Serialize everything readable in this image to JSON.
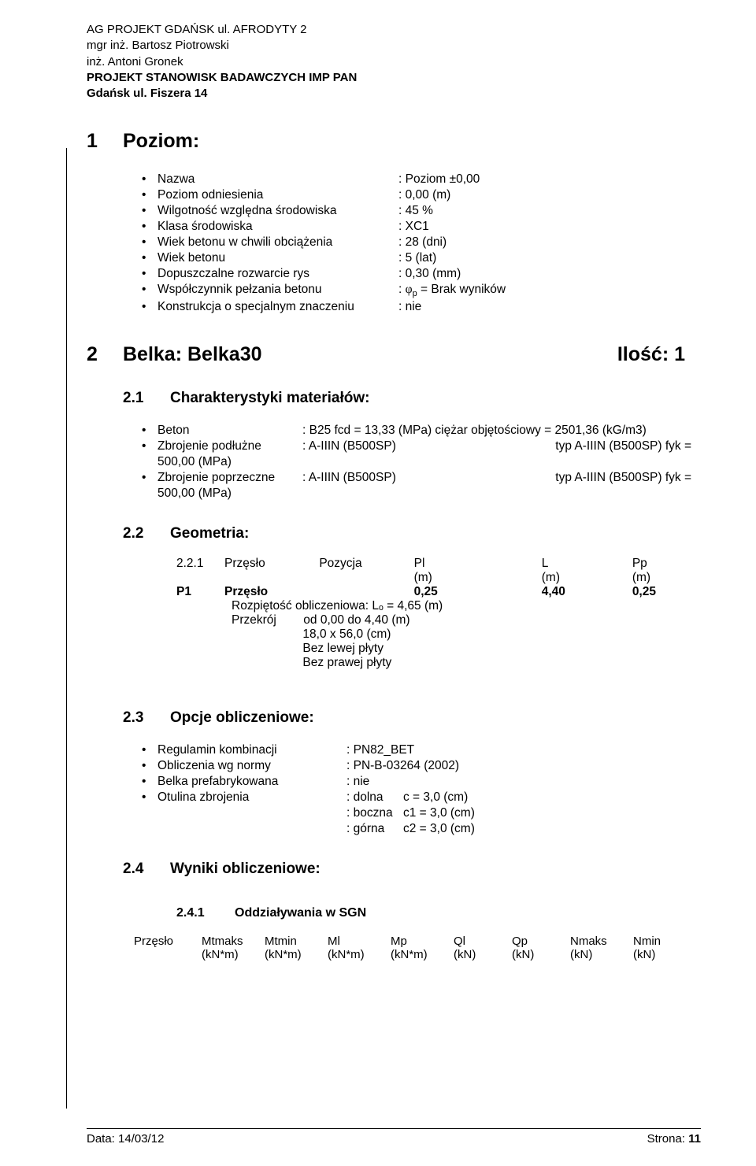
{
  "header": {
    "l1": "AG PROJEKT GDAŃSK ul. AFRODYTY 2",
    "l2": "mgr inż. Bartosz Piotrowski",
    "l3": "inż. Antoni Gronek",
    "l4": "PROJEKT STANOWISK BADAWCZYCH IMP PAN",
    "l5": "Gdańsk ul. Fiszera 14"
  },
  "s1": {
    "num": "1",
    "title": "Poziom:"
  },
  "poziom": [
    {
      "lbl": "Nazwa",
      "val": ": Poziom ±0,00"
    },
    {
      "lbl": "Poziom odniesienia",
      "val": ": 0,00 (m)"
    },
    {
      "lbl": "Wilgotność względna środowiska",
      "val": ":  45 %"
    },
    {
      "lbl": "Klasa środowiska",
      "val": ": XC1"
    },
    {
      "lbl": "Wiek betonu w chwili obciążenia",
      "val": ": 28 (dni)"
    },
    {
      "lbl": "Wiek betonu",
      "val": ": 5 (lat)"
    },
    {
      "lbl": "Dopuszczalne rozwarcie rys",
      "val": ": 0,30 (mm)"
    },
    {
      "lbl": "Współczynnik pełzania betonu",
      "valPhi": ": ",
      "phi": "φ",
      "valAfter": "p = Brak wyników"
    },
    {
      "lbl": "Konstrukcja o specjalnym znaczeniu",
      "val": ": nie"
    }
  ],
  "s2": {
    "num": "2",
    "title": "Belka: Belka30",
    "right": "Ilość: 1"
  },
  "s21": {
    "num": "2.1",
    "title": "Charakterystyki materiałów:"
  },
  "mat": {
    "l1": {
      "name": "Beton",
      "mid": ":   B25    fcd = 13,33 (MPa)  ciężar objętościowy = 2501,36 (kG/m3)"
    },
    "l2": {
      "name": "Zbrojenie podłużne",
      "mid": ":   A-IIIN (B500SP)",
      "right": "typ A-IIIN (B500SP)              fyk   ="
    },
    "l2b": "500,00 (MPa)",
    "l3": {
      "name": "Zbrojenie poprzeczne",
      "mid": ":   A-IIIN (B500SP)",
      "right": "typ A-IIIN (B500SP)              fyk   ="
    },
    "l3b": "500,00 (MPa)"
  },
  "s22": {
    "num": "2.2",
    "title": "Geometria:"
  },
  "geom": {
    "head": {
      "c1": "2.2.1",
      "c2": "Przęsło",
      "c3": "Pozycja",
      "c4": "Pl",
      "c5": "L",
      "c6": "Pp"
    },
    "units": {
      "u1": "(m)",
      "u2": "(m)",
      "u3": "(m)"
    },
    "row": {
      "c1": "P1",
      "c2": "Przęsło",
      "c3": "0,25",
      "c4": "4,40",
      "c5": "0,25"
    },
    "lines": [
      "Rozpiętość obliczeniowa: Lₒ = 4,65 (m)",
      "Przekrój        od 0,00 do 4,40 (m)",
      "                     18,0 x 56,0 (cm)",
      "                     Bez lewej płyty",
      "                     Bez prawej płyty"
    ]
  },
  "s23": {
    "num": "2.3",
    "title": "Opcje obliczeniowe:"
  },
  "opt": [
    {
      "lbl": "Regulamin kombinacji",
      "val": ": PN82_BET"
    },
    {
      "lbl": "Obliczenia wg normy",
      "val": ": PN-B-03264 (2002)"
    },
    {
      "lbl": "Belka prefabrykowana",
      "val": ": nie"
    },
    {
      "lbl": "Otulina zbrojenia",
      "col": ": dolna",
      "val": "c   = 3,0 (cm)"
    },
    {
      "sub": true,
      "col": ": boczna",
      "val": "c1 = 3,0 (cm)"
    },
    {
      "sub": true,
      "col": ": górna",
      "val": "c2 = 3,0 (cm)"
    }
  ],
  "s24": {
    "num": "2.4",
    "title": "Wyniki obliczeniowe:"
  },
  "s241": {
    "num": "2.4.1",
    "title": "Oddziaływania w SGN"
  },
  "tbl": {
    "h": [
      "Przęsło",
      "Mtmaks",
      "Mtmin",
      "Ml",
      "Mp",
      "Ql",
      "Qp",
      "Nmaks",
      "Nmin"
    ],
    "u": [
      "",
      "(kN*m)",
      "(kN*m)",
      "(kN*m)",
      "(kN*m)",
      "(kN)",
      "(kN)",
      "(kN)",
      "(kN)"
    ]
  },
  "footer": {
    "left": "Data: 14/03/12",
    "right": "Strona: 11"
  }
}
